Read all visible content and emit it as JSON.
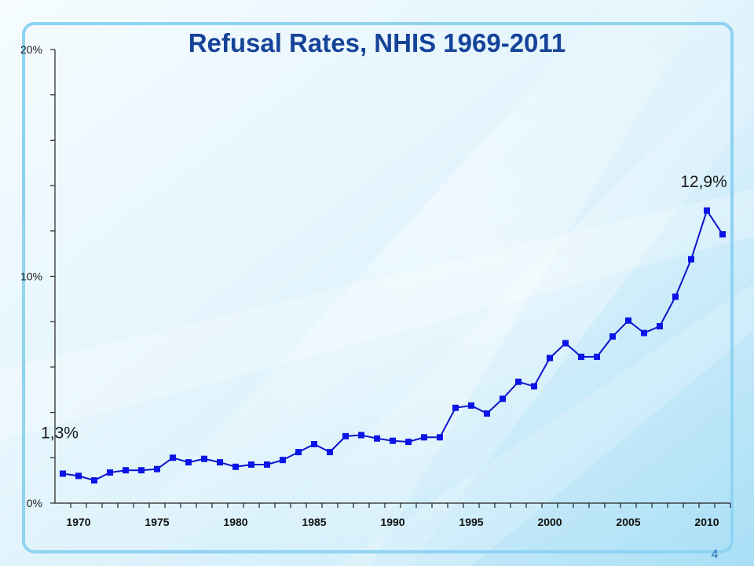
{
  "slide": {
    "page_number": "4"
  },
  "colors": {
    "background_light": "#f4fbfe",
    "background_dark": "#a8def6",
    "frame_border": "#8fd3f3",
    "title": "#16439a",
    "series_line": "#0a14c8",
    "marker": "#0a14e6"
  },
  "chart_data": {
    "type": "line",
    "title": "Refusal Rates, NHIS 1969-2011",
    "xlabel": "",
    "ylabel": "",
    "x": [
      1969,
      1970,
      1971,
      1972,
      1973,
      1974,
      1975,
      1976,
      1977,
      1978,
      1979,
      1980,
      1981,
      1982,
      1983,
      1984,
      1985,
      1986,
      1987,
      1988,
      1989,
      1990,
      1991,
      1992,
      1993,
      1994,
      1995,
      1996,
      1997,
      1998,
      1999,
      2000,
      2001,
      2002,
      2003,
      2004,
      2005,
      2006,
      2007,
      2008,
      2009,
      2010,
      2011
    ],
    "series": [
      {
        "values": [
          1.3,
          1.2,
          1.0,
          1.35,
          1.45,
          1.45,
          1.5,
          2.0,
          1.8,
          1.95,
          1.8,
          1.6,
          1.7,
          1.7,
          1.9,
          2.25,
          2.6,
          2.25,
          2.95,
          3.0,
          2.85,
          2.75,
          2.7,
          2.9,
          2.9,
          4.2,
          4.3,
          3.95,
          4.6,
          5.35,
          5.15,
          6.4,
          7.05,
          6.45,
          6.45,
          7.35,
          8.05,
          7.5,
          7.8,
          9.1,
          10.75,
          12.9,
          11.85
        ]
      }
    ],
    "xticks": [
      "1970",
      "1975",
      "1980",
      "1985",
      "1990",
      "1995",
      "2000",
      "2005",
      "2010"
    ],
    "xtick_values": [
      1970,
      1975,
      1980,
      1985,
      1990,
      1995,
      2000,
      2005,
      2010
    ],
    "yticks": [
      "0%",
      "10%",
      "20%"
    ],
    "ytick_values": [
      0,
      10,
      20
    ],
    "ylim": [
      0,
      20
    ],
    "xlim": [
      1968.5,
      2011.5
    ],
    "minor_y_step": 2,
    "grid": false,
    "legend": "none",
    "annotations": [
      {
        "text": "1,3%",
        "x": 1969,
        "y": 1.3
      },
      {
        "text": "12,9%",
        "x": 2010,
        "y": 12.9
      }
    ]
  }
}
